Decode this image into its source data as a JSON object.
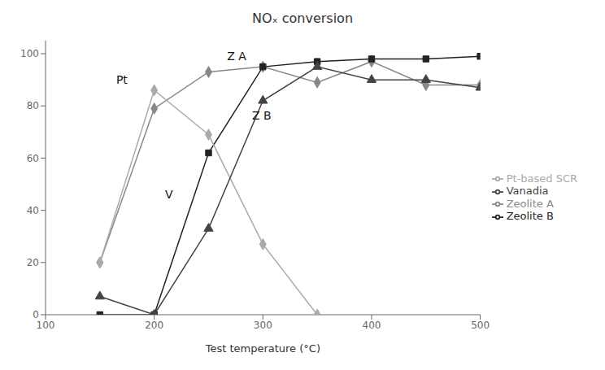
{
  "chart_data": {
    "type": "line",
    "title": "NOₓ conversion",
    "xlabel": "Test temperature (°C)",
    "xlim": [
      100,
      500
    ],
    "ylim": [
      0,
      105
    ],
    "xticks": [
      100,
      200,
      300,
      400,
      500
    ],
    "yticks": [
      0,
      20,
      40,
      60,
      80,
      100
    ],
    "grid": false,
    "legend": "right",
    "series": [
      {
        "name": "Zeolite A",
        "color": "#888888",
        "marker": "diamond",
        "line_style": "solid",
        "x": [
          150,
          200,
          250,
          300,
          350,
          400,
          450,
          500
        ],
        "values": [
          20,
          79,
          93,
          95,
          89,
          97,
          88,
          88
        ]
      },
      {
        "name": "Zeolite B",
        "color": "#222222",
        "marker": "square",
        "line_style": "solid",
        "x": [
          150,
          200,
          250,
          300,
          350,
          400,
          450,
          500
        ],
        "values": [
          0,
          0,
          62,
          95,
          97,
          98,
          98,
          99
        ]
      },
      {
        "name": "Pt-based SCR",
        "color": "#aaaaaa",
        "marker": "diamond",
        "line_style": "solid",
        "x": [
          150,
          200,
          250,
          300,
          350
        ],
        "values": [
          20,
          86,
          69,
          27,
          0
        ]
      },
      {
        "name": "Vanadia",
        "color": "#444444",
        "marker": "triangle",
        "line_style": "solid",
        "x": [
          150,
          200,
          250,
          300,
          350,
          400,
          450,
          500
        ],
        "values": [
          7,
          0,
          33,
          82,
          95,
          90,
          90,
          87
        ]
      }
    ],
    "annotations": [
      {
        "text": "Z A",
        "x": 267,
        "y": 97
      },
      {
        "text": "Z B",
        "x": 290,
        "y": 74
      },
      {
        "text": "Pt",
        "x": 165,
        "y": 88
      },
      {
        "text": "V",
        "x": 210,
        "y": 44
      }
    ]
  }
}
